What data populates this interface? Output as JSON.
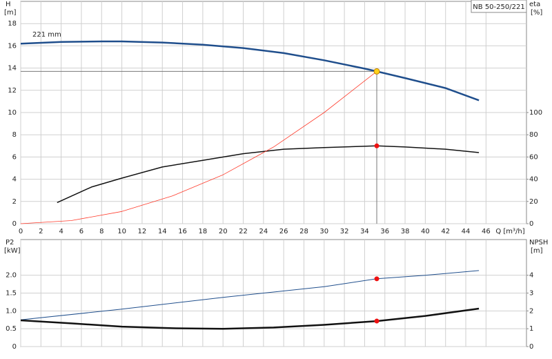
{
  "chart_data": [
    {
      "type": "line",
      "ylabel": "H",
      "yunit": "[m]",
      "y2label": "eta",
      "y2unit": "[%]",
      "xlabel": "Q [m³/h]",
      "annotation": "221 mm",
      "model": "NB 50-250/221",
      "xlim": [
        0,
        50
      ],
      "xticks": [
        0,
        2,
        4,
        6,
        8,
        10,
        12,
        14,
        16,
        18,
        20,
        22,
        24,
        26,
        28,
        30,
        32,
        34,
        36,
        38,
        40,
        42,
        44,
        46
      ],
      "show_xtick_labels": true,
      "ylim": [
        0,
        20
      ],
      "yticks": [
        0,
        2,
        4,
        6,
        8,
        10,
        12,
        14,
        16,
        18
      ],
      "y2lim": [
        0,
        200
      ],
      "y2ticks": [
        0,
        20,
        40,
        60,
        80,
        100
      ],
      "grid": true,
      "series": [
        {
          "color": "#1f4e8c",
          "width": 2.5,
          "x": [
            0,
            4,
            8,
            10,
            14,
            18,
            22,
            26,
            30,
            34,
            35.2,
            38,
            42,
            45.3
          ],
          "values": [
            16.2,
            16.35,
            16.4,
            16.4,
            16.3,
            16.1,
            15.8,
            15.35,
            14.7,
            13.95,
            13.7,
            13.1,
            12.2,
            11.1
          ]
        },
        {
          "color": "#111111",
          "width": 1.5,
          "axis": "y2",
          "x": [
            3.6,
            7,
            10,
            14,
            18,
            22,
            26,
            30,
            35.2,
            38,
            42,
            45.3
          ],
          "values": [
            19,
            33,
            41,
            51,
            57,
            63,
            67,
            68.5,
            70,
            69,
            67,
            64
          ]
        },
        {
          "color": "#ff3a2a",
          "width": 0.8,
          "x": [
            0,
            5,
            10,
            15,
            20,
            25,
            30,
            35.2
          ],
          "values": [
            0,
            0.28,
            1.1,
            2.5,
            4.4,
            6.9,
            10,
            13.7
          ]
        }
      ],
      "operating_point": {
        "x": 35.2,
        "y": 13.7,
        "eta": 70
      }
    },
    {
      "type": "line",
      "ylabel": "P2",
      "yunit": "[kW]",
      "y2label": "NPSH",
      "y2unit": "[m]",
      "xlim": [
        0,
        50
      ],
      "xticks": [
        0,
        2,
        4,
        6,
        8,
        10,
        12,
        14,
        16,
        18,
        20,
        22,
        24,
        26,
        28,
        30,
        32,
        34,
        36,
        38,
        40,
        42,
        44,
        46
      ],
      "show_xtick_labels": false,
      "ylim": [
        0,
        3
      ],
      "yticks": [
        0,
        0.5,
        {
          "value": 1,
          "label": "1.0"
        },
        1.5,
        {
          "value": 2,
          "label": "2.0"
        }
      ],
      "y2lim": [
        0,
        6
      ],
      "y2ticks": [
        0,
        1,
        2,
        3,
        4
      ],
      "grid": true,
      "series": [
        {
          "color": "#1f4e8c",
          "width": 1,
          "x": [
            0,
            10,
            20,
            30,
            35.2,
            40,
            45.3
          ],
          "values": [
            0.75,
            1.05,
            1.38,
            1.68,
            1.9,
            2.0,
            2.13
          ]
        },
        {
          "color": "#111111",
          "width": 2.5,
          "axis": "y2",
          "x": [
            0,
            5,
            10,
            15,
            20,
            25,
            30,
            35.2,
            40,
            45.3
          ],
          "values": [
            1.47,
            1.3,
            1.12,
            1.03,
            1.0,
            1.07,
            1.22,
            1.43,
            1.72,
            2.13
          ]
        }
      ],
      "operating_point": {
        "x": 35.2,
        "p2": 1.9,
        "npsh": 1.43
      }
    }
  ]
}
